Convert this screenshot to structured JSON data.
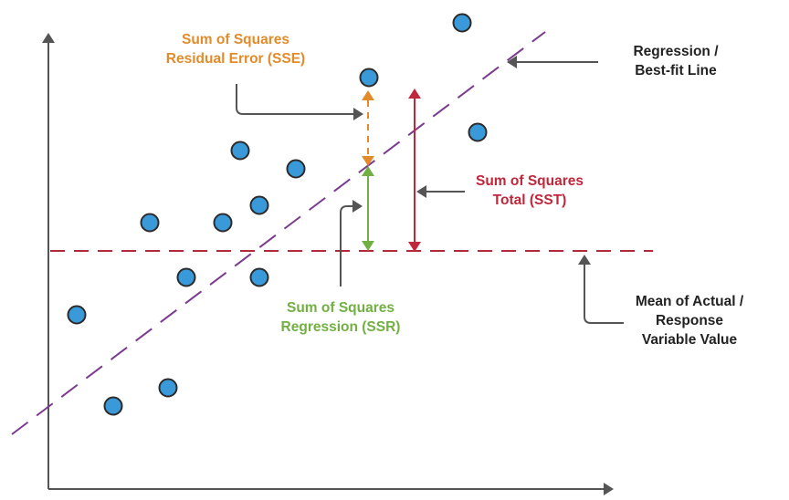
{
  "colors": {
    "point_fill": "#3a9ad9",
    "point_stroke": "#2b2b2b",
    "axis": "#555555",
    "mean_line": "#b22a3a",
    "regression_line": "#7b3a8f",
    "sse": "#e38b2a",
    "ssr": "#72b043",
    "sst": "#c1273a",
    "callout": "#555555",
    "text_dark": "#222222"
  },
  "labels": {
    "sse": {
      "line1": "Sum of Squares",
      "line2": "Residual Error (SSE)"
    },
    "regression": {
      "line1": "Regression /",
      "line2": "Best-fit Line"
    },
    "sst": {
      "line1": "Sum of Squares",
      "line2": "Total (SST)"
    },
    "ssr": {
      "line1": "Sum of Squares",
      "line2": "Regression (SSR)"
    },
    "mean": {
      "line1": "Mean of Actual /",
      "line2": "Response",
      "line3": "Variable Value"
    }
  },
  "elements": {
    "points": [
      "data-point"
    ],
    "axes": [
      "x-axis",
      "y-axis"
    ],
    "lines": [
      "regression-line",
      "mean-line"
    ],
    "arrows": [
      "sse-arrow",
      "ssr-arrow",
      "sst-arrow"
    ]
  }
}
